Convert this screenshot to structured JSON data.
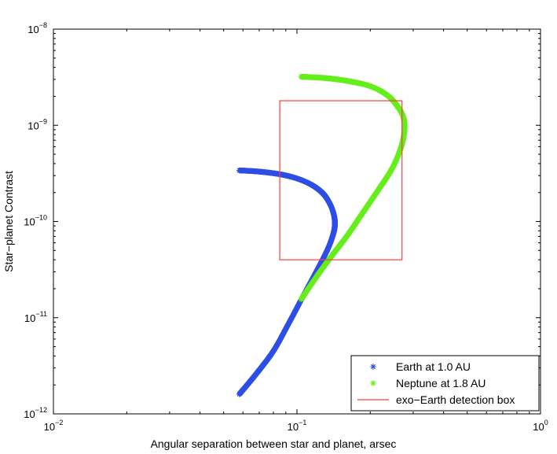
{
  "chart_data": {
    "type": "scatter",
    "title": "",
    "xlabel": "Angular separation between star and planet, arsec",
    "ylabel": "Star−planet Contrast",
    "xscale": "log",
    "yscale": "log",
    "xlim": [
      0.01,
      1
    ],
    "ylim": [
      1e-12,
      1e-08
    ],
    "grid": false,
    "legend_position": "bottom-right",
    "x_tick_labels": [
      {
        "value": 0.01,
        "base": "10",
        "exp": "−2"
      },
      {
        "value": 0.1,
        "base": "10",
        "exp": "−1"
      },
      {
        "value": 1,
        "base": "10",
        "exp": "0"
      }
    ],
    "y_tick_labels": [
      {
        "value": 1e-12,
        "base": "10",
        "exp": "−12"
      },
      {
        "value": 1e-11,
        "base": "10",
        "exp": "−11"
      },
      {
        "value": 1e-10,
        "base": "10",
        "exp": "−10"
      },
      {
        "value": 1e-09,
        "base": "10",
        "exp": "−9"
      },
      {
        "value": 1e-08,
        "base": "10",
        "exp": "−8"
      }
    ],
    "series": [
      {
        "name": "Earth at 1.0 AU",
        "marker": "*",
        "color": "#2e4fe6",
        "points": [
          [
            0.058,
            3.4e-10
          ],
          [
            0.07,
            3.3e-10
          ],
          [
            0.085,
            3.1e-10
          ],
          [
            0.1,
            2.8e-10
          ],
          [
            0.115,
            2.4e-10
          ],
          [
            0.128,
            1.95e-10
          ],
          [
            0.137,
            1.5e-10
          ],
          [
            0.142,
            1.15e-10
          ],
          [
            0.143,
            9e-11
          ],
          [
            0.14,
            7e-11
          ],
          [
            0.133,
            5e-11
          ],
          [
            0.12,
            3e-11
          ],
          [
            0.105,
            1.6e-11
          ],
          [
            0.092,
            8.5e-12
          ],
          [
            0.08,
            4.5e-12
          ],
          [
            0.068,
            2.6e-12
          ],
          [
            0.058,
            1.6e-12
          ]
        ]
      },
      {
        "name": "Neptune at 1.8 AU",
        "marker": "*",
        "color": "#66ee1c",
        "points": [
          [
            0.104,
            3.2e-09
          ],
          [
            0.13,
            3.1e-09
          ],
          [
            0.16,
            2.9e-09
          ],
          [
            0.2,
            2.55e-09
          ],
          [
            0.235,
            2.05e-09
          ],
          [
            0.26,
            1.55e-09
          ],
          [
            0.275,
            1.15e-09
          ],
          [
            0.275,
            8e-10
          ],
          [
            0.265,
            5.5e-10
          ],
          [
            0.245,
            3.5e-10
          ],
          [
            0.215,
            2.1e-10
          ],
          [
            0.185,
            1.2e-10
          ],
          [
            0.16,
            7e-11
          ],
          [
            0.14,
            4.5e-11
          ],
          [
            0.122,
            2.8e-11
          ],
          [
            0.104,
            1.55e-11
          ]
        ]
      }
    ],
    "box": {
      "name": "exo−Earth detection box",
      "color": "#ff3b3b",
      "x": [
        0.085,
        0.27
      ],
      "y": [
        4e-11,
        1.8e-09
      ]
    }
  }
}
